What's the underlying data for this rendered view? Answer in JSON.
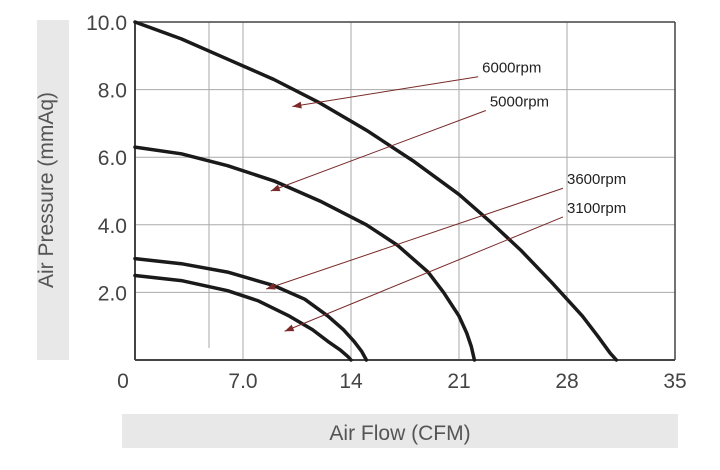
{
  "chart_data": {
    "type": "line",
    "title": "",
    "xlabel": "Air Flow (CFM)",
    "ylabel": "Air Pressure (mmAq)",
    "xlim": [
      0,
      35
    ],
    "ylim": [
      0,
      10
    ],
    "x_ticks": [
      "0",
      "7.0",
      "14",
      "21",
      "28",
      "35"
    ],
    "y_ticks": [
      "2.0",
      "4.0",
      "6.0",
      "8.0",
      "10.0"
    ],
    "grid": true,
    "series": [
      {
        "name": "6000rpm",
        "x": [
          0,
          3,
          6,
          9,
          12,
          15,
          18,
          21,
          23,
          25,
          27,
          28,
          29,
          30,
          30.8,
          31.2
        ],
        "y": [
          10.0,
          9.5,
          8.9,
          8.3,
          7.6,
          6.8,
          5.9,
          4.9,
          4.1,
          3.25,
          2.3,
          1.8,
          1.3,
          0.7,
          0.2,
          0
        ]
      },
      {
        "name": "5000rpm",
        "x": [
          0,
          3,
          6,
          9,
          12,
          15,
          17,
          19,
          20,
          21,
          21.5,
          21.8,
          22.0
        ],
        "y": [
          6.3,
          6.1,
          5.75,
          5.3,
          4.7,
          4.0,
          3.4,
          2.6,
          2.0,
          1.3,
          0.8,
          0.4,
          0
        ]
      },
      {
        "name": "3600rpm",
        "x": [
          0,
          3,
          6,
          9,
          11,
          12.5,
          13.5,
          14.2,
          14.7,
          15.0
        ],
        "y": [
          3.0,
          2.85,
          2.6,
          2.2,
          1.8,
          1.3,
          0.9,
          0.55,
          0.25,
          0
        ]
      },
      {
        "name": "3100rpm",
        "x": [
          0,
          3,
          6,
          8,
          10,
          11.5,
          12.5,
          13.3,
          13.8,
          14.0
        ],
        "y": [
          2.5,
          2.35,
          2.05,
          1.75,
          1.3,
          0.9,
          0.55,
          0.3,
          0.1,
          0
        ]
      }
    ],
    "annotations": [
      {
        "text": "6000rpm",
        "series": "6000rpm",
        "label_x": 22.5,
        "label_y": 8.5,
        "arrow_x": 10.2,
        "arrow_y": 7.5
      },
      {
        "text": "5000rpm",
        "series": "5000rpm",
        "label_x": 23.0,
        "label_y": 7.5,
        "arrow_x": 8.8,
        "arrow_y": 5.0
      },
      {
        "text": "3600rpm",
        "series": "3600rpm",
        "label_x": 28.0,
        "label_y": 5.2,
        "arrow_x": 8.5,
        "arrow_y": 2.1
      },
      {
        "text": "3100rpm",
        "series": "3100rpm",
        "label_x": 28.0,
        "label_y": 4.35,
        "arrow_x": 9.7,
        "arrow_y": 0.85
      }
    ],
    "colors": {
      "curve": "#1a1a1a",
      "grid": "#aaaaaa",
      "axis": "#444444",
      "arrow": "#7a2a2a",
      "label_band": "#e8e8e8"
    }
  }
}
